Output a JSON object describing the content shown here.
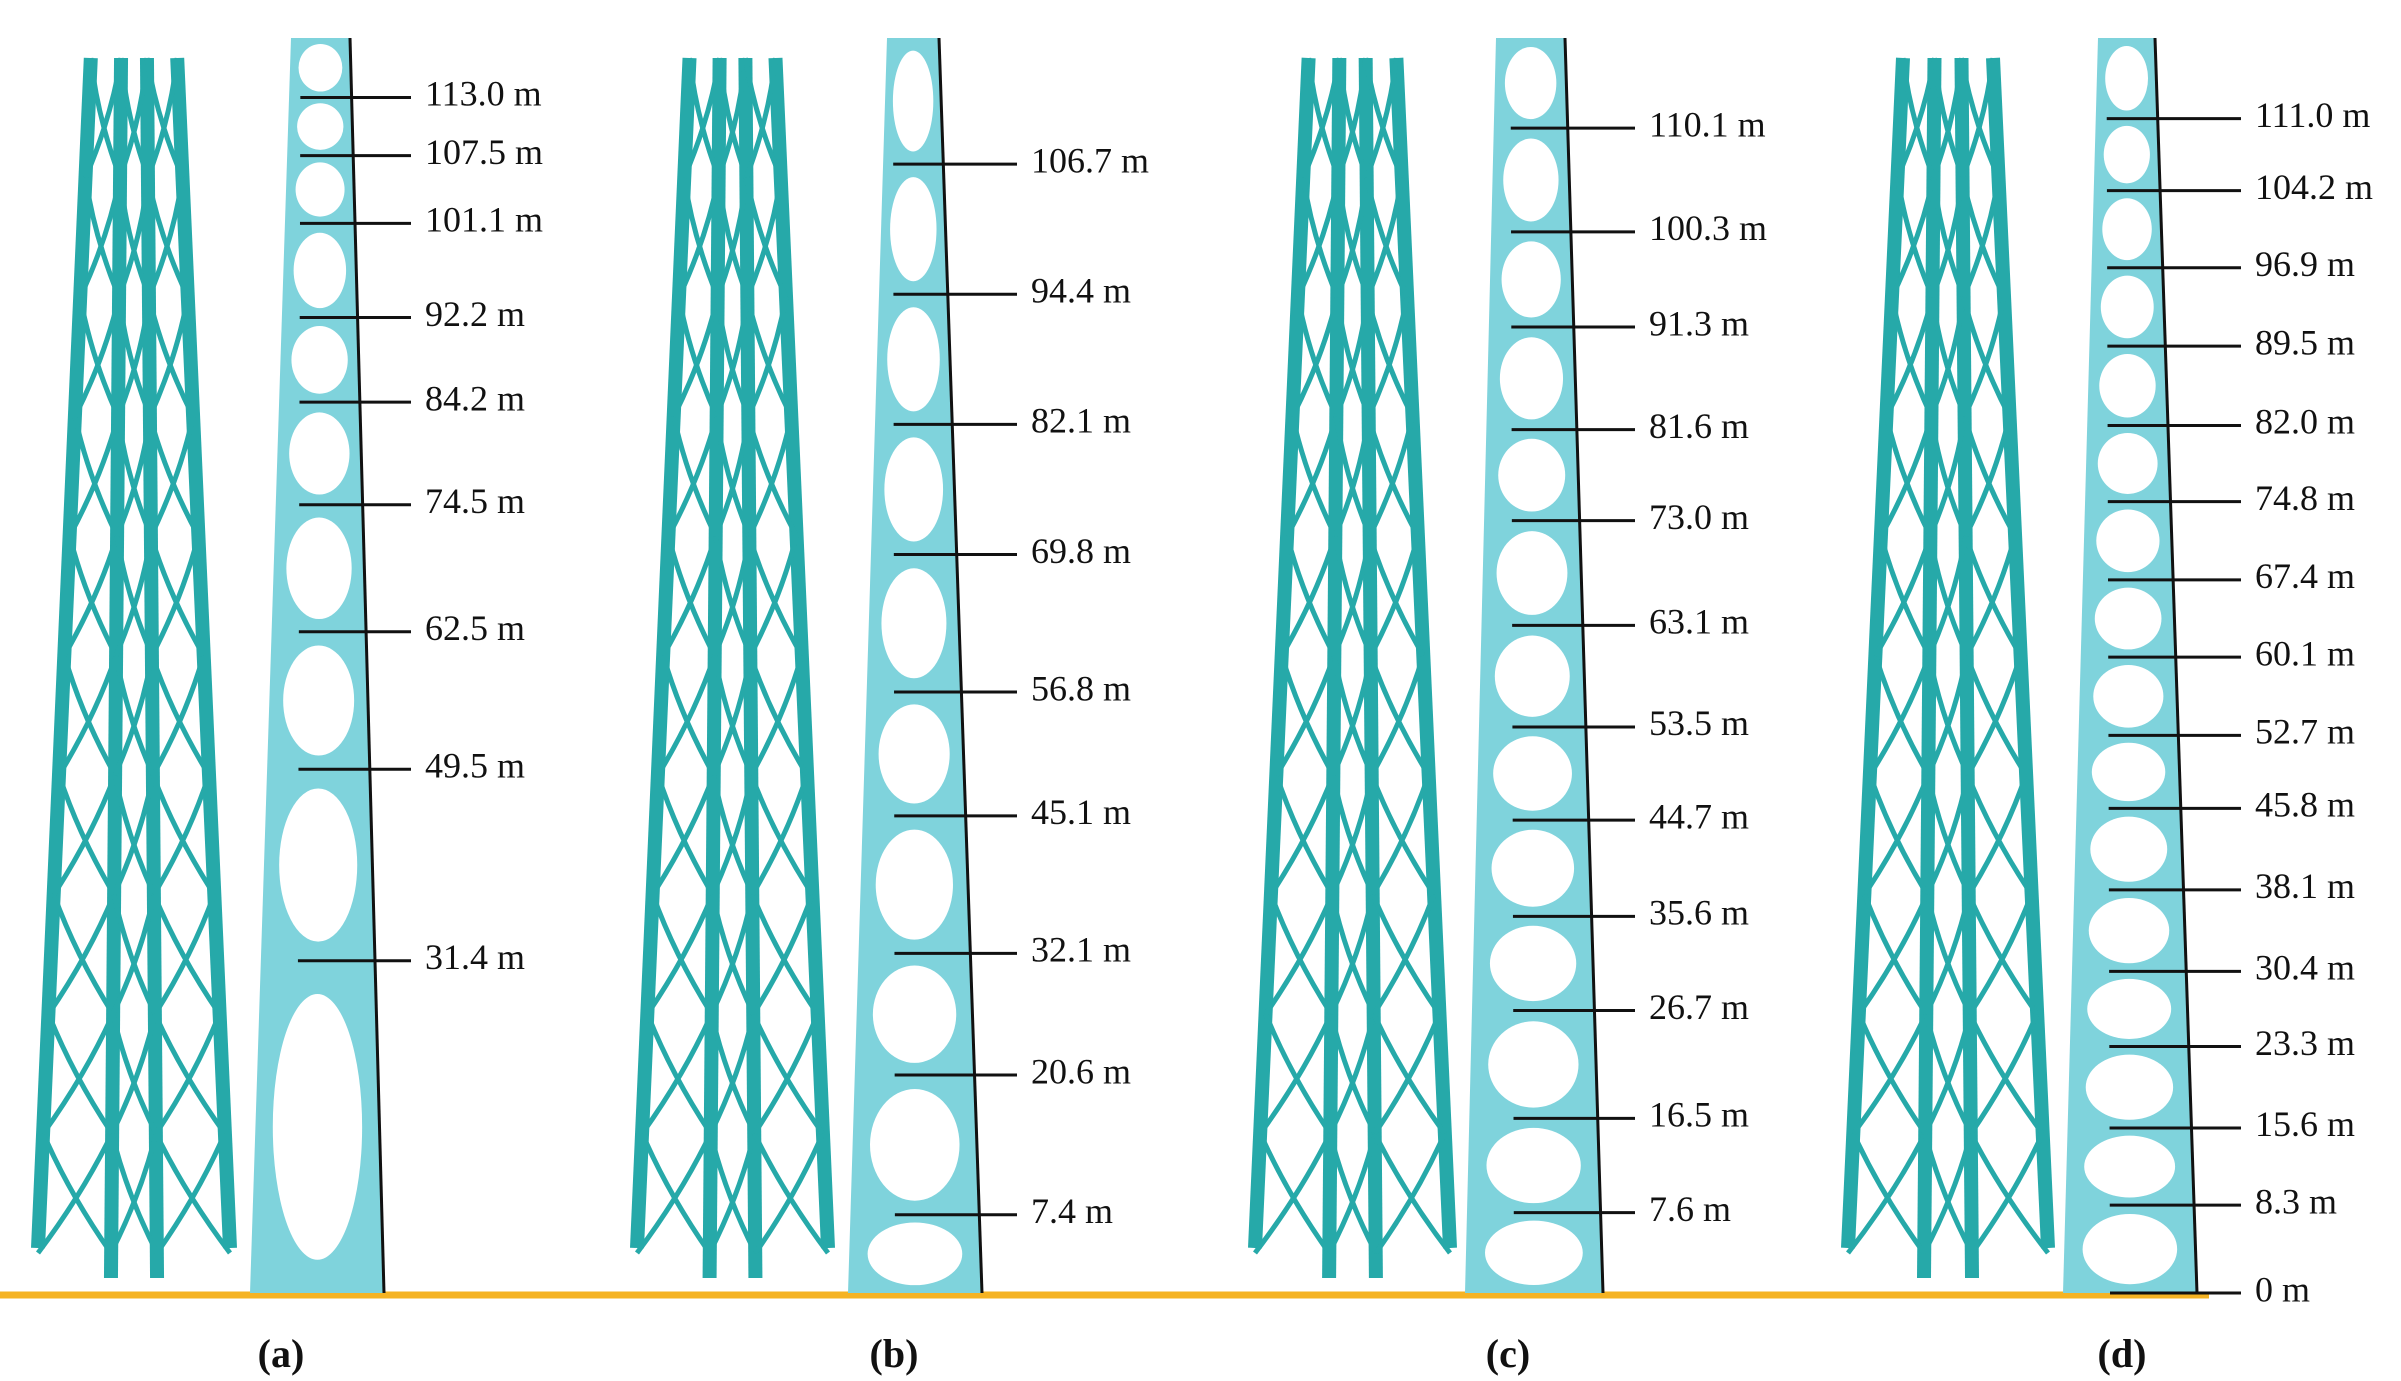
{
  "panels": [
    {
      "label": "(a)",
      "levels": [
        {
          "value": 113.0,
          "label": "113.0 m"
        },
        {
          "value": 107.5,
          "label": "107.5 m"
        },
        {
          "value": 101.1,
          "label": "101.1 m"
        },
        {
          "value": 92.2,
          "label": "92.2 m"
        },
        {
          "value": 84.2,
          "label": "84.2 m"
        },
        {
          "value": 74.5,
          "label": "74.5 m"
        },
        {
          "value": 62.5,
          "label": "62.5 m"
        },
        {
          "value": 49.5,
          "label": "49.5 m"
        },
        {
          "value": 31.4,
          "label": "31.4 m"
        }
      ]
    },
    {
      "label": "(b)",
      "levels": [
        {
          "value": 106.7,
          "label": "106.7 m"
        },
        {
          "value": 94.4,
          "label": "94.4 m"
        },
        {
          "value": 82.1,
          "label": "82.1 m"
        },
        {
          "value": 69.8,
          "label": "69.8 m"
        },
        {
          "value": 56.8,
          "label": "56.8 m"
        },
        {
          "value": 45.1,
          "label": "45.1 m"
        },
        {
          "value": 32.1,
          "label": "32.1 m"
        },
        {
          "value": 20.6,
          "label": "20.6 m"
        },
        {
          "value": 7.4,
          "label": "7.4 m"
        }
      ]
    },
    {
      "label": "(c)",
      "levels": [
        {
          "value": 110.1,
          "label": "110.1 m"
        },
        {
          "value": 100.3,
          "label": "100.3 m"
        },
        {
          "value": 91.3,
          "label": "91.3 m"
        },
        {
          "value": 81.6,
          "label": "81.6 m"
        },
        {
          "value": 73.0,
          "label": "73.0 m"
        },
        {
          "value": 63.1,
          "label": "63.1 m"
        },
        {
          "value": 53.5,
          "label": "53.5 m"
        },
        {
          "value": 44.7,
          "label": "44.7 m"
        },
        {
          "value": 35.6,
          "label": "35.6 m"
        },
        {
          "value": 26.7,
          "label": "26.7 m"
        },
        {
          "value": 16.5,
          "label": "16.5 m"
        },
        {
          "value": 7.6,
          "label": "7.6 m"
        }
      ]
    },
    {
      "label": "(d)",
      "levels": [
        {
          "value": 111.0,
          "label": "111.0 m"
        },
        {
          "value": 104.2,
          "label": "104.2 m"
        },
        {
          "value": 96.9,
          "label": "96.9 m"
        },
        {
          "value": 89.5,
          "label": "89.5 m"
        },
        {
          "value": 82.0,
          "label": "82.0 m"
        },
        {
          "value": 74.8,
          "label": "74.8 m"
        },
        {
          "value": 67.4,
          "label": "67.4 m"
        },
        {
          "value": 60.1,
          "label": "60.1 m"
        },
        {
          "value": 52.7,
          "label": "52.7 m"
        },
        {
          "value": 45.8,
          "label": "45.8 m"
        },
        {
          "value": 38.1,
          "label": "38.1 m"
        },
        {
          "value": 30.4,
          "label": "30.4 m"
        },
        {
          "value": 23.3,
          "label": "23.3 m"
        },
        {
          "value": 15.6,
          "label": "15.6 m"
        },
        {
          "value": 8.3,
          "label": "8.3 m"
        },
        {
          "value": 0,
          "label": "0 m"
        }
      ]
    }
  ]
}
